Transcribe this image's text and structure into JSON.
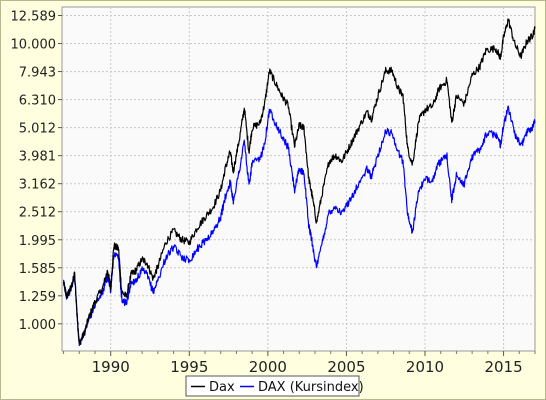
{
  "chart_data": {
    "type": "line",
    "title": "",
    "xlabel": "",
    "ylabel": "",
    "y_scale": "log",
    "ylim": [
      0.8,
      13.5
    ],
    "xlim": [
      1986.9,
      2017.0
    ],
    "grid": true,
    "legend_position": "bottom-center",
    "y_ticks": [
      {
        "value": 1.0,
        "label": "1.000"
      },
      {
        "value": 1.259,
        "label": "1.259"
      },
      {
        "value": 1.585,
        "label": "1.585"
      },
      {
        "value": 1.995,
        "label": "1.995"
      },
      {
        "value": 2.512,
        "label": "2.512"
      },
      {
        "value": 3.162,
        "label": "3.162"
      },
      {
        "value": 3.981,
        "label": "3.981"
      },
      {
        "value": 5.012,
        "label": "5.012"
      },
      {
        "value": 6.31,
        "label": "6.310"
      },
      {
        "value": 7.943,
        "label": "7.943"
      },
      {
        "value": 10.0,
        "label": "10.000"
      },
      {
        "value": 12.589,
        "label": "12.589"
      }
    ],
    "x_ticks": [
      {
        "value": 1990,
        "label": "1990"
      },
      {
        "value": 1995,
        "label": "1995"
      },
      {
        "value": 2000,
        "label": "2000"
      },
      {
        "value": 2005,
        "label": "2005"
      },
      {
        "value": 2010,
        "label": "2010"
      },
      {
        "value": 2015,
        "label": "2015"
      }
    ],
    "series": [
      {
        "name": "Dax",
        "color": "#000000",
        "points": [
          [
            1987.0,
            1.4
          ],
          [
            1987.2,
            1.25
          ],
          [
            1987.5,
            1.35
          ],
          [
            1987.7,
            1.5
          ],
          [
            1987.9,
            1.0
          ],
          [
            1988.0,
            0.85
          ],
          [
            1988.3,
            0.92
          ],
          [
            1988.6,
            1.05
          ],
          [
            1989.0,
            1.2
          ],
          [
            1989.5,
            1.35
          ],
          [
            1989.8,
            1.55
          ],
          [
            1990.0,
            1.35
          ],
          [
            1990.2,
            1.9
          ],
          [
            1990.5,
            1.85
          ],
          [
            1990.7,
            1.3
          ],
          [
            1991.0,
            1.25
          ],
          [
            1991.3,
            1.5
          ],
          [
            1991.6,
            1.55
          ],
          [
            1992.0,
            1.7
          ],
          [
            1992.3,
            1.65
          ],
          [
            1992.7,
            1.45
          ],
          [
            1993.0,
            1.6
          ],
          [
            1993.5,
            1.95
          ],
          [
            1994.0,
            2.15
          ],
          [
            1994.5,
            2.0
          ],
          [
            1995.0,
            1.95
          ],
          [
            1995.5,
            2.2
          ],
          [
            1996.0,
            2.4
          ],
          [
            1996.5,
            2.6
          ],
          [
            1997.0,
            3.0
          ],
          [
            1997.3,
            3.6
          ],
          [
            1997.6,
            4.1
          ],
          [
            1997.8,
            3.5
          ],
          [
            1998.2,
            4.6
          ],
          [
            1998.5,
            5.9
          ],
          [
            1998.8,
            4.1
          ],
          [
            1999.0,
            5.0
          ],
          [
            1999.5,
            5.2
          ],
          [
            1999.8,
            6.1
          ],
          [
            2000.1,
            8.0
          ],
          [
            2000.5,
            7.2
          ],
          [
            2000.9,
            6.5
          ],
          [
            2001.3,
            6.0
          ],
          [
            2001.7,
            4.3
          ],
          [
            2002.0,
            5.1
          ],
          [
            2002.3,
            5.0
          ],
          [
            2002.6,
            3.3
          ],
          [
            2002.8,
            2.9
          ],
          [
            2003.1,
            2.3
          ],
          [
            2003.5,
            3.0
          ],
          [
            2003.9,
            3.8
          ],
          [
            2004.3,
            4.0
          ],
          [
            2004.7,
            3.8
          ],
          [
            2005.2,
            4.3
          ],
          [
            2005.7,
            4.9
          ],
          [
            2006.3,
            5.7
          ],
          [
            2006.6,
            5.4
          ],
          [
            2007.0,
            6.5
          ],
          [
            2007.5,
            8.0
          ],
          [
            2007.9,
            8.0
          ],
          [
            2008.3,
            6.9
          ],
          [
            2008.6,
            6.5
          ],
          [
            2008.9,
            4.2
          ],
          [
            2009.2,
            3.7
          ],
          [
            2009.6,
            5.3
          ],
          [
            2010.0,
            5.8
          ],
          [
            2010.5,
            6.0
          ],
          [
            2010.9,
            6.9
          ],
          [
            2011.4,
            7.4
          ],
          [
            2011.7,
            5.2
          ],
          [
            2012.0,
            6.5
          ],
          [
            2012.5,
            6.1
          ],
          [
            2013.0,
            7.7
          ],
          [
            2013.5,
            8.3
          ],
          [
            2013.9,
            9.5
          ],
          [
            2014.5,
            9.6
          ],
          [
            2014.8,
            8.9
          ],
          [
            2015.0,
            10.5
          ],
          [
            2015.3,
            12.2
          ],
          [
            2015.7,
            10.0
          ],
          [
            2016.1,
            9.0
          ],
          [
            2016.5,
            10.2
          ],
          [
            2016.8,
            10.6
          ],
          [
            2017.0,
            11.3
          ]
        ]
      },
      {
        "name": "DAX (Kursindex)",
        "color": "#0000ff",
        "points": [
          [
            1987.0,
            1.4
          ],
          [
            1987.2,
            1.25
          ],
          [
            1987.5,
            1.35
          ],
          [
            1987.7,
            1.5
          ],
          [
            1987.9,
            1.0
          ],
          [
            1988.0,
            0.85
          ],
          [
            1988.3,
            0.92
          ],
          [
            1988.6,
            1.03
          ],
          [
            1989.0,
            1.17
          ],
          [
            1989.5,
            1.3
          ],
          [
            1989.8,
            1.48
          ],
          [
            1990.0,
            1.3
          ],
          [
            1990.2,
            1.78
          ],
          [
            1990.5,
            1.72
          ],
          [
            1990.7,
            1.22
          ],
          [
            1991.0,
            1.18
          ],
          [
            1991.3,
            1.4
          ],
          [
            1991.6,
            1.43
          ],
          [
            1992.0,
            1.55
          ],
          [
            1992.3,
            1.5
          ],
          [
            1992.7,
            1.3
          ],
          [
            1993.0,
            1.43
          ],
          [
            1993.5,
            1.72
          ],
          [
            1994.0,
            1.88
          ],
          [
            1994.5,
            1.74
          ],
          [
            1995.0,
            1.68
          ],
          [
            1995.5,
            1.85
          ],
          [
            1996.0,
            1.98
          ],
          [
            1996.5,
            2.12
          ],
          [
            1997.0,
            2.4
          ],
          [
            1997.3,
            2.85
          ],
          [
            1997.6,
            3.2
          ],
          [
            1997.8,
            2.75
          ],
          [
            1998.2,
            3.55
          ],
          [
            1998.5,
            4.5
          ],
          [
            1998.8,
            3.1
          ],
          [
            1999.0,
            3.75
          ],
          [
            1999.5,
            3.85
          ],
          [
            1999.8,
            4.45
          ],
          [
            2000.1,
            5.8
          ],
          [
            2000.5,
            5.2
          ],
          [
            2000.9,
            4.65
          ],
          [
            2001.3,
            4.25
          ],
          [
            2001.7,
            3.0
          ],
          [
            2002.0,
            3.55
          ],
          [
            2002.3,
            3.45
          ],
          [
            2002.6,
            2.25
          ],
          [
            2002.8,
            1.98
          ],
          [
            2003.1,
            1.58
          ],
          [
            2003.5,
            2.0
          ],
          [
            2003.9,
            2.5
          ],
          [
            2004.3,
            2.62
          ],
          [
            2004.7,
            2.47
          ],
          [
            2005.2,
            2.75
          ],
          [
            2005.7,
            3.1
          ],
          [
            2006.3,
            3.55
          ],
          [
            2006.6,
            3.35
          ],
          [
            2007.0,
            4.0
          ],
          [
            2007.5,
            4.85
          ],
          [
            2007.9,
            4.8
          ],
          [
            2008.3,
            4.1
          ],
          [
            2008.6,
            3.8
          ],
          [
            2008.9,
            2.45
          ],
          [
            2009.2,
            2.12
          ],
          [
            2009.6,
            3.0
          ],
          [
            2010.0,
            3.25
          ],
          [
            2010.5,
            3.3
          ],
          [
            2010.9,
            3.75
          ],
          [
            2011.4,
            3.95
          ],
          [
            2011.7,
            2.75
          ],
          [
            2012.0,
            3.4
          ],
          [
            2012.5,
            3.15
          ],
          [
            2013.0,
            3.95
          ],
          [
            2013.5,
            4.2
          ],
          [
            2013.9,
            4.75
          ],
          [
            2014.5,
            4.75
          ],
          [
            2014.8,
            4.35
          ],
          [
            2015.0,
            5.1
          ],
          [
            2015.3,
            5.9
          ],
          [
            2015.7,
            4.8
          ],
          [
            2016.1,
            4.3
          ],
          [
            2016.5,
            4.85
          ],
          [
            2016.8,
            5.0
          ],
          [
            2017.0,
            5.3
          ]
        ]
      }
    ]
  }
}
